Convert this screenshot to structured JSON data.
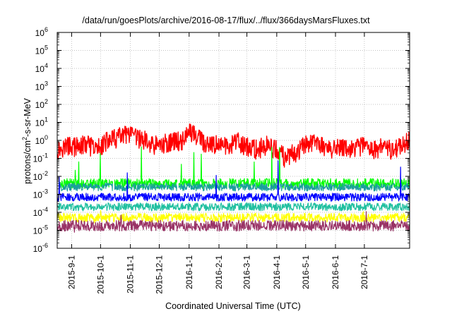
{
  "chart_data": {
    "type": "line",
    "title": "/data/run/goesPlots/archive/2016-08-17/flux/../flux/366daysMarsFluxes.txt",
    "xlabel": "Coordinated Universal Time (UTC)",
    "ylabel_parts": {
      "prefix": "protons/cm",
      "sup": "2",
      "suffix": "-s-sr-MeV"
    },
    "y_scale": "log",
    "ylim": [
      1e-06,
      1000000.0
    ],
    "y_ticks": [
      {
        "value": 1e-06,
        "base": "10",
        "exp": "-6"
      },
      {
        "value": 1e-05,
        "base": "10",
        "exp": "-5"
      },
      {
        "value": 0.0001,
        "base": "10",
        "exp": "-4"
      },
      {
        "value": 0.001,
        "base": "10",
        "exp": "-3"
      },
      {
        "value": 0.01,
        "base": "10",
        "exp": "-2"
      },
      {
        "value": 0.1,
        "base": "10",
        "exp": "-1"
      },
      {
        "value": 1,
        "base": "10",
        "exp": "0"
      },
      {
        "value": 10.0,
        "base": "10",
        "exp": "1"
      },
      {
        "value": 100.0,
        "base": "10",
        "exp": "2"
      },
      {
        "value": 1000.0,
        "base": "10",
        "exp": "3"
      },
      {
        "value": 10000.0,
        "base": "10",
        "exp": "4"
      },
      {
        "value": 100000.0,
        "base": "10",
        "exp": "5"
      },
      {
        "value": 1000000.0,
        "base": "10",
        "exp": "6"
      }
    ],
    "xlim": [
      "2015-08-17",
      "2016-08-17"
    ],
    "x_ticks": [
      "2015-9-1",
      "2015-10-1",
      "2015-11-1",
      "2015-12-1",
      "2016-1-1",
      "2016-2-1",
      "2016-3-1",
      "2016-4-1",
      "2016-5-1",
      "2016-6-1",
      "2016-7-1"
    ],
    "x_tick_dates": [
      "2015-09-01",
      "2015-10-01",
      "2015-11-01",
      "2015-12-01",
      "2016-01-01",
      "2016-02-01",
      "2016-03-01",
      "2016-04-01",
      "2016-05-01",
      "2016-06-01",
      "2016-07-01"
    ],
    "grid": true,
    "series": [
      {
        "color": "#ff0000",
        "x": [
          "2015-08-17",
          "2015-08-27",
          "2015-09-06",
          "2015-09-16",
          "2015-09-26",
          "2015-10-06",
          "2015-10-16",
          "2015-10-26",
          "2015-11-05",
          "2015-11-15",
          "2015-11-25",
          "2015-12-05",
          "2015-12-15",
          "2015-12-25",
          "2016-01-01",
          "2016-01-11",
          "2016-01-21",
          "2016-01-31",
          "2016-02-10",
          "2016-02-20",
          "2016-03-01",
          "2016-03-11",
          "2016-03-21",
          "2016-03-31",
          "2016-04-10",
          "2016-04-20",
          "2016-04-30",
          "2016-05-10",
          "2016-05-20",
          "2016-05-30",
          "2016-06-09",
          "2016-06-19",
          "2016-06-29",
          "2016-07-09",
          "2016-07-19",
          "2016-07-29",
          "2016-08-08",
          "2016-08-17"
        ],
        "y": [
          0.3,
          0.5,
          0.4,
          0.6,
          0.3,
          0.8,
          1.2,
          2,
          1.5,
          1,
          0.5,
          0.6,
          0.8,
          1,
          3,
          1.5,
          0.4,
          0.6,
          0.5,
          0.8,
          0.4,
          0.3,
          0.5,
          0.3,
          0.1,
          0.2,
          0.5,
          0.8,
          0.5,
          0.3,
          0.4,
          0.3,
          0.5,
          0.3,
          0.4,
          0.3,
          0.5,
          1
        ]
      },
      {
        "color": "#00ff00",
        "x": [
          "2015-08-17",
          "2016-08-17"
        ],
        "y": [
          0.004,
          0.004
        ]
      },
      {
        "color": "#1b9e9e",
        "x": [
          "2015-08-17",
          "2016-08-17"
        ],
        "y": [
          0.0025,
          0.0025
        ]
      },
      {
        "color": "#ffffff",
        "x": [
          "2015-08-17",
          "2016-08-17"
        ],
        "y": [
          0.0012,
          0.0012
        ]
      },
      {
        "color": "#0000ff",
        "x": [
          "2015-08-17",
          "2016-08-17"
        ],
        "y": [
          0.0007,
          0.0007
        ]
      },
      {
        "color": "#20c0a0",
        "x": [
          "2015-08-17",
          "2016-08-17"
        ],
        "y": [
          0.0002,
          0.0002
        ]
      },
      {
        "color": "#ffff00",
        "x": [
          "2015-08-17",
          "2016-08-17"
        ],
        "y": [
          5e-05,
          5e-05
        ]
      },
      {
        "color": "#993366",
        "x": [
          "2015-08-17",
          "2016-08-17"
        ],
        "y": [
          1.8e-05,
          1.8e-05
        ]
      }
    ]
  }
}
